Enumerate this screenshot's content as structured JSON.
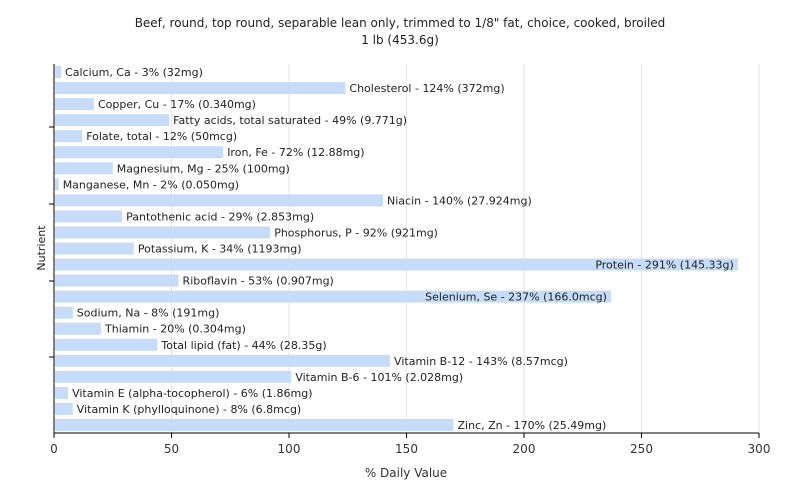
{
  "chart_data": {
    "type": "bar",
    "orientation": "horizontal",
    "title": "Beef, round, top round, separable lean only, trimmed to 1/8\" fat, choice, cooked, broiled",
    "subtitle": "1 lb (453.6g)",
    "xlabel": "% Daily Value",
    "ylabel": "Nutrient",
    "xlim": [
      0,
      300
    ],
    "xticks": [
      0,
      50,
      100,
      150,
      200,
      250,
      300
    ],
    "grid": true,
    "bar_color": "#c6dcf8",
    "categories": [
      "Calcium, Ca",
      "Cholesterol",
      "Copper, Cu",
      "Fatty acids, total saturated",
      "Folate, total",
      "Iron, Fe",
      "Magnesium, Mg",
      "Manganese, Mn",
      "Niacin",
      "Pantothenic acid",
      "Phosphorus, P",
      "Potassium, K",
      "Protein",
      "Riboflavin",
      "Selenium, Se",
      "Sodium, Na",
      "Thiamin",
      "Total lipid (fat)",
      "Vitamin B-12",
      "Vitamin B-6",
      "Vitamin E (alpha-tocopherol)",
      "Vitamin K (phylloquinone)",
      "Zinc, Zn"
    ],
    "values": [
      3,
      124,
      17,
      49,
      12,
      72,
      25,
      2,
      140,
      29,
      92,
      34,
      291,
      53,
      237,
      8,
      20,
      44,
      143,
      101,
      6,
      8,
      170
    ],
    "labels": [
      "Calcium, Ca - 3% (32mg)",
      "Cholesterol - 124% (372mg)",
      "Copper, Cu - 17% (0.340mg)",
      "Fatty acids, total saturated - 49% (9.771g)",
      "Folate, total - 12% (50mcg)",
      "Iron, Fe - 72% (12.88mg)",
      "Magnesium, Mg - 25% (100mg)",
      "Manganese, Mn - 2% (0.050mg)",
      "Niacin - 140% (27.924mg)",
      "Pantothenic acid - 29% (2.853mg)",
      "Phosphorus, P - 92% (921mg)",
      "Potassium, K - 34% (1193mg)",
      "Protein - 291% (145.33g)",
      "Riboflavin - 53% (0.907mg)",
      "Selenium, Se - 237% (166.0mcg)",
      "Sodium, Na - 8% (191mg)",
      "Thiamin - 20% (0.304mg)",
      "Total lipid (fat) - 44% (28.35g)",
      "Vitamin B-12 - 143% (8.57mcg)",
      "Vitamin B-6 - 101% (2.028mg)",
      "Vitamin E (alpha-tocopherol) - 6% (1.86mg)",
      "Vitamin K (phylloquinone) - 8% (6.8mcg)",
      "Zinc, Zn - 170% (25.49mg)"
    ]
  }
}
